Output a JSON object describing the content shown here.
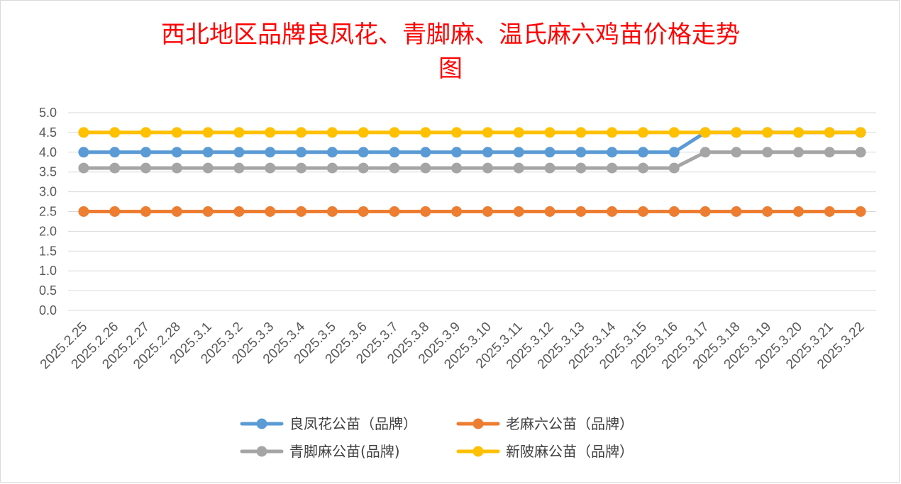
{
  "chart_data": {
    "type": "line",
    "title_lines": [
      "西北地区品牌良凤花、青脚麻、温氏麻六鸡苗价格走势",
      "图"
    ],
    "x": [
      "2025.2.25",
      "2025.2.26",
      "2025.2.27",
      "2025.2.28",
      "2025.3.1",
      "2025.3.2",
      "2025.3.3",
      "2025.3.4",
      "2025.3.5",
      "2025.3.6",
      "2025.3.7",
      "2025.3.8",
      "2025.3.9",
      "2025.3.10",
      "2025.3.11",
      "2025.3.12",
      "2025.3.13",
      "2025.3.14",
      "2025.3.15",
      "2025.3.16",
      "2025.3.17",
      "2025.3.18",
      "2025.3.19",
      "2025.3.20",
      "2025.3.21",
      "2025.3.22"
    ],
    "y_ticks": [
      "0.0",
      "0.5",
      "1.0",
      "1.5",
      "2.0",
      "2.5",
      "3.0",
      "3.5",
      "4.0",
      "4.5",
      "5.0"
    ],
    "ylim": [
      0,
      5
    ],
    "grid": true,
    "legend_position": "bottom",
    "series": [
      {
        "name": "良凤花公苗（品牌）",
        "color": "#5b9bd5",
        "values": [
          4.0,
          4.0,
          4.0,
          4.0,
          4.0,
          4.0,
          4.0,
          4.0,
          4.0,
          4.0,
          4.0,
          4.0,
          4.0,
          4.0,
          4.0,
          4.0,
          4.0,
          4.0,
          4.0,
          4.0,
          4.5,
          4.5,
          4.5,
          4.5,
          4.5,
          4.5
        ]
      },
      {
        "name": "老麻六公苗（品牌）",
        "color": "#ed7d31",
        "values": [
          2.5,
          2.5,
          2.5,
          2.5,
          2.5,
          2.5,
          2.5,
          2.5,
          2.5,
          2.5,
          2.5,
          2.5,
          2.5,
          2.5,
          2.5,
          2.5,
          2.5,
          2.5,
          2.5,
          2.5,
          2.5,
          2.5,
          2.5,
          2.5,
          2.5,
          2.5
        ]
      },
      {
        "name": "青脚麻公苗(品牌)",
        "color": "#a5a5a5",
        "values": [
          3.6,
          3.6,
          3.6,
          3.6,
          3.6,
          3.6,
          3.6,
          3.6,
          3.6,
          3.6,
          3.6,
          3.6,
          3.6,
          3.6,
          3.6,
          3.6,
          3.6,
          3.6,
          3.6,
          3.6,
          4.0,
          4.0,
          4.0,
          4.0,
          4.0,
          4.0
        ]
      },
      {
        "name": "新陂麻公苗（品牌）",
        "color": "#ffc000",
        "values": [
          4.5,
          4.5,
          4.5,
          4.5,
          4.5,
          4.5,
          4.5,
          4.5,
          4.5,
          4.5,
          4.5,
          4.5,
          4.5,
          4.5,
          4.5,
          4.5,
          4.5,
          4.5,
          4.5,
          4.5,
          4.5,
          4.5,
          4.5,
          4.5,
          4.5,
          4.5
        ]
      }
    ]
  }
}
